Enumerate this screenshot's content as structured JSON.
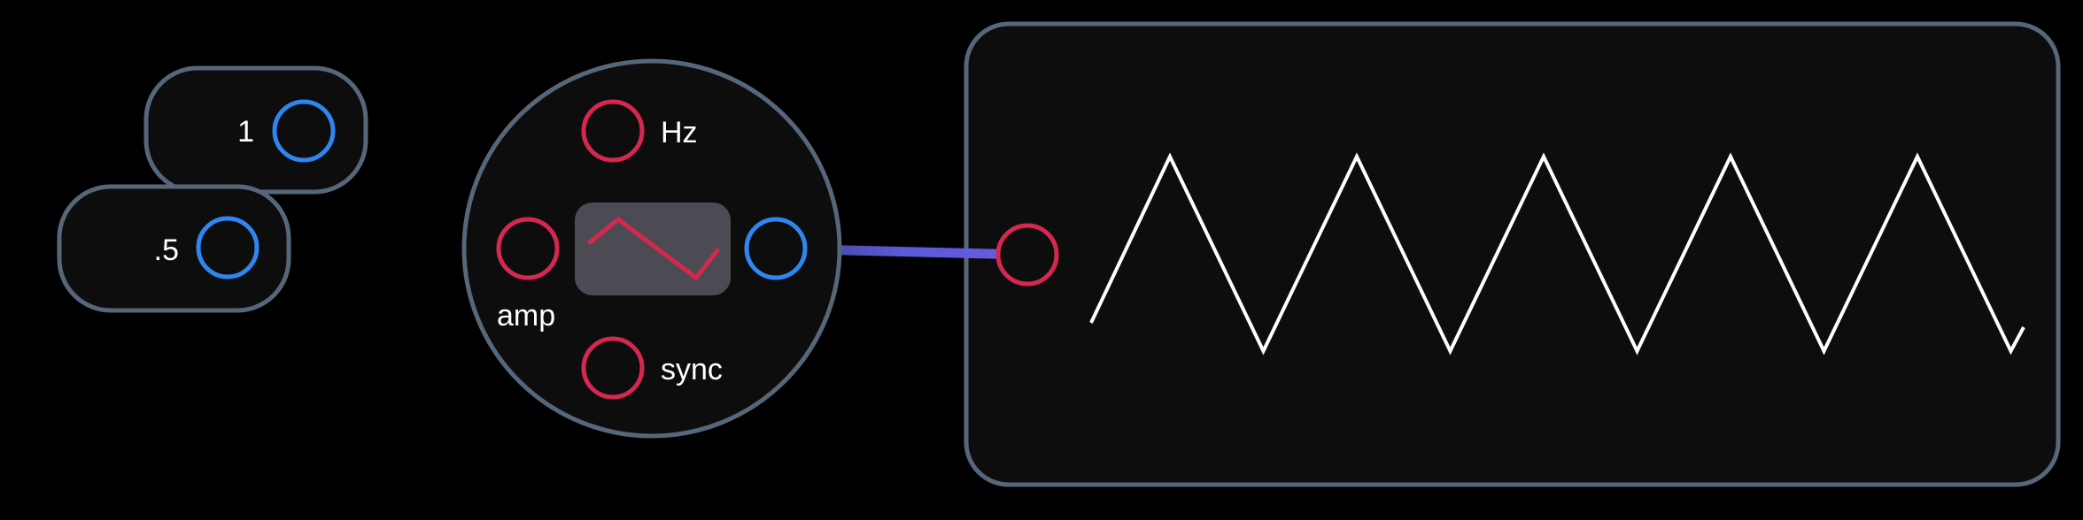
{
  "constants": [
    {
      "value": "1"
    },
    {
      "value": ".5"
    }
  ],
  "oscillator": {
    "inputs": {
      "hz": "Hz",
      "amp": "amp",
      "sync": "sync"
    },
    "waveform_icon": "triangle-wave-icon"
  },
  "scope": {
    "waveform": "triangle",
    "frequency_hz": 1,
    "amplitude": 0.5,
    "visible_peaks": 5
  },
  "colors": {
    "background": "#000000",
    "node_fill": "#0d0d0e",
    "node_border": "#56677a",
    "input_port": "#d6284f",
    "output_port": "#2f86f0",
    "cable_hz": "#d6284f",
    "cable_amp": "#8a5cc4",
    "cable_out": "#5b5ad8",
    "trace": "#ffffff"
  }
}
